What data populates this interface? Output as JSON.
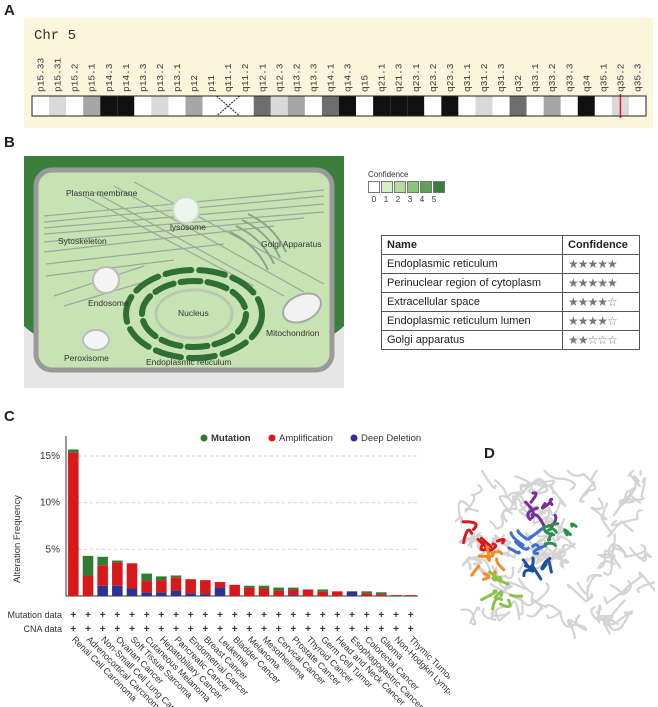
{
  "panels": {
    "a": "A",
    "b": "B",
    "c": "C",
    "d": "D"
  },
  "chromosome": {
    "title": "Chr 5",
    "bands": [
      {
        "name": "p15.33",
        "stain": "gneg"
      },
      {
        "name": "p15.31",
        "stain": "gpos25"
      },
      {
        "name": "p15.2",
        "stain": "gneg"
      },
      {
        "name": "p15.1",
        "stain": "gpos50"
      },
      {
        "name": "p14.3",
        "stain": "gpos100"
      },
      {
        "name": "p14.1",
        "stain": "gpos100"
      },
      {
        "name": "p13.3",
        "stain": "gneg"
      },
      {
        "name": "p13.2",
        "stain": "gpos25"
      },
      {
        "name": "p13.1",
        "stain": "gneg"
      },
      {
        "name": "p12",
        "stain": "gpos50"
      },
      {
        "name": "p11",
        "stain": "gneg"
      },
      {
        "name": "q11.1",
        "stain": "acen"
      },
      {
        "name": "q11.2",
        "stain": "gneg"
      },
      {
        "name": "q12.1",
        "stain": "gpos75"
      },
      {
        "name": "q12.3",
        "stain": "gpos25"
      },
      {
        "name": "q13.2",
        "stain": "gpos50"
      },
      {
        "name": "q13.3",
        "stain": "gneg"
      },
      {
        "name": "q14.1",
        "stain": "gpos75"
      },
      {
        "name": "q14.3",
        "stain": "gpos100"
      },
      {
        "name": "q15",
        "stain": "gneg"
      },
      {
        "name": "q21.1",
        "stain": "gpos100"
      },
      {
        "name": "q21.3",
        "stain": "gpos100"
      },
      {
        "name": "q23.1",
        "stain": "gpos100"
      },
      {
        "name": "q23.2",
        "stain": "gneg"
      },
      {
        "name": "q23.3",
        "stain": "gpos100"
      },
      {
        "name": "q31.1",
        "stain": "gneg"
      },
      {
        "name": "q31.2",
        "stain": "gpos25"
      },
      {
        "name": "q31.3",
        "stain": "gneg"
      },
      {
        "name": "q32",
        "stain": "gpos75"
      },
      {
        "name": "q33.1",
        "stain": "gneg"
      },
      {
        "name": "q33.2",
        "stain": "gpos50"
      },
      {
        "name": "q33.3",
        "stain": "gneg"
      },
      {
        "name": "q34",
        "stain": "gpos100"
      },
      {
        "name": "q35.1",
        "stain": "gneg"
      },
      {
        "name": "q35.2",
        "stain": "gpos25"
      },
      {
        "name": "q35.3",
        "stain": "gneg"
      }
    ],
    "marker_band": "q35.2",
    "marker_color": "#e01b24"
  },
  "cell": {
    "labels": {
      "plasma_membrane": "Plasma membrane",
      "cytoskeleton": "Sytoskeleton",
      "lysosome": "lysosome",
      "golgi": "Golgi Apparatus",
      "endosome": "Endosome",
      "nucleus": "Nucleus",
      "mitochondrion": "Mitochondrion",
      "peroxisome": "Peroxisome",
      "er": "Endoplasmic reticulum"
    },
    "colors": {
      "cytoplasm": "#c7e3b3",
      "membrane_border": "#3f8a3f",
      "er_dark": "#2f6e34"
    }
  },
  "confidence_legend": {
    "title": "Confidence",
    "levels": [
      "0",
      "1",
      "2",
      "3",
      "4",
      "5"
    ],
    "colors": [
      "#ffffff",
      "#d8edc8",
      "#b6dca0",
      "#8cc47a",
      "#5fa257",
      "#3a7d3c"
    ]
  },
  "location_table": {
    "headers": [
      "Name",
      "Confidence"
    ],
    "rows": [
      {
        "name": "Endoplasmic reticulum",
        "stars": "★★★★★"
      },
      {
        "name": "Perinuclear region of cytoplasm",
        "stars": "★★★★★"
      },
      {
        "name": "Extracellular space",
        "stars": "★★★★☆"
      },
      {
        "name": "Endoplasmic reticulum lumen",
        "stars": "★★★★☆"
      },
      {
        "name": "Golgi apparatus",
        "stars": "★★☆☆☆"
      }
    ]
  },
  "chart_data": {
    "type": "bar",
    "stacked": true,
    "ylabel": "Alteration Frequency",
    "yticks": [
      "5%",
      "10%",
      "15%"
    ],
    "ylim": [
      0,
      16.5
    ],
    "legend_position": "top-right",
    "row_labels": [
      "Mutation data",
      "CNA data"
    ],
    "row_marker": "+",
    "categories": [
      "Renal Cell Carcinoma",
      "Adrenocortical Carcinoma",
      "Non-Small Cell Lung Cancer",
      "Ovarian Cancer",
      "Soft Tissue Sarcoma",
      "Cutaneous Melanoma",
      "Hepatobiliary Cancer",
      "Pancreatic Cancer",
      "Endometrial Cancer",
      "Breast Cancer",
      "Leukemia",
      "Bladder Cancer",
      "Melanoma",
      "Mesothelioma",
      "Cervical Cancer",
      "Prostate Cancer",
      "Thyroid Cancer",
      "Germ Cell Tumor",
      "Head and Neck Cancer",
      "Esophagogastric Cancer",
      "Colorectal Cancer",
      "Glioma",
      "Non-Hodgkin Lymphoma",
      "Thymic Tumor"
    ],
    "series": [
      {
        "name": "Deep Deletion",
        "color": "#2e3192",
        "values": [
          0,
          0,
          1.1,
          1.1,
          0.8,
          0.4,
          0.4,
          0.6,
          0.3,
          0.2,
          0.9,
          0,
          0,
          0,
          0,
          0.1,
          0,
          0,
          0,
          0.5,
          0,
          0,
          0,
          0
        ]
      },
      {
        "name": "Amplification",
        "color": "#d7191c",
        "values": [
          15.4,
          2.2,
          2.2,
          2.5,
          2.7,
          1.2,
          1.3,
          1.4,
          1.5,
          1.5,
          0.6,
          1.2,
          0.9,
          0.8,
          0.6,
          0.6,
          0.7,
          0.5,
          0.5,
          0,
          0.3,
          0.2,
          0.1,
          0.1
        ]
      },
      {
        "name": "Mutation",
        "color": "#2e7d32",
        "values": [
          0.3,
          2.1,
          0.9,
          0.2,
          0,
          0.8,
          0.4,
          0.2,
          0,
          0,
          0,
          0,
          0.2,
          0.3,
          0.3,
          0.2,
          0,
          0.2,
          0,
          0,
          0.2,
          0.2,
          0,
          0
        ]
      }
    ]
  },
  "protein": {
    "colors": [
      "#d7191c",
      "#f28c28",
      "#8bc34a",
      "#3b6fd1",
      "#7b2d9b",
      "#2f8f4e",
      "#1f4e9c"
    ]
  }
}
